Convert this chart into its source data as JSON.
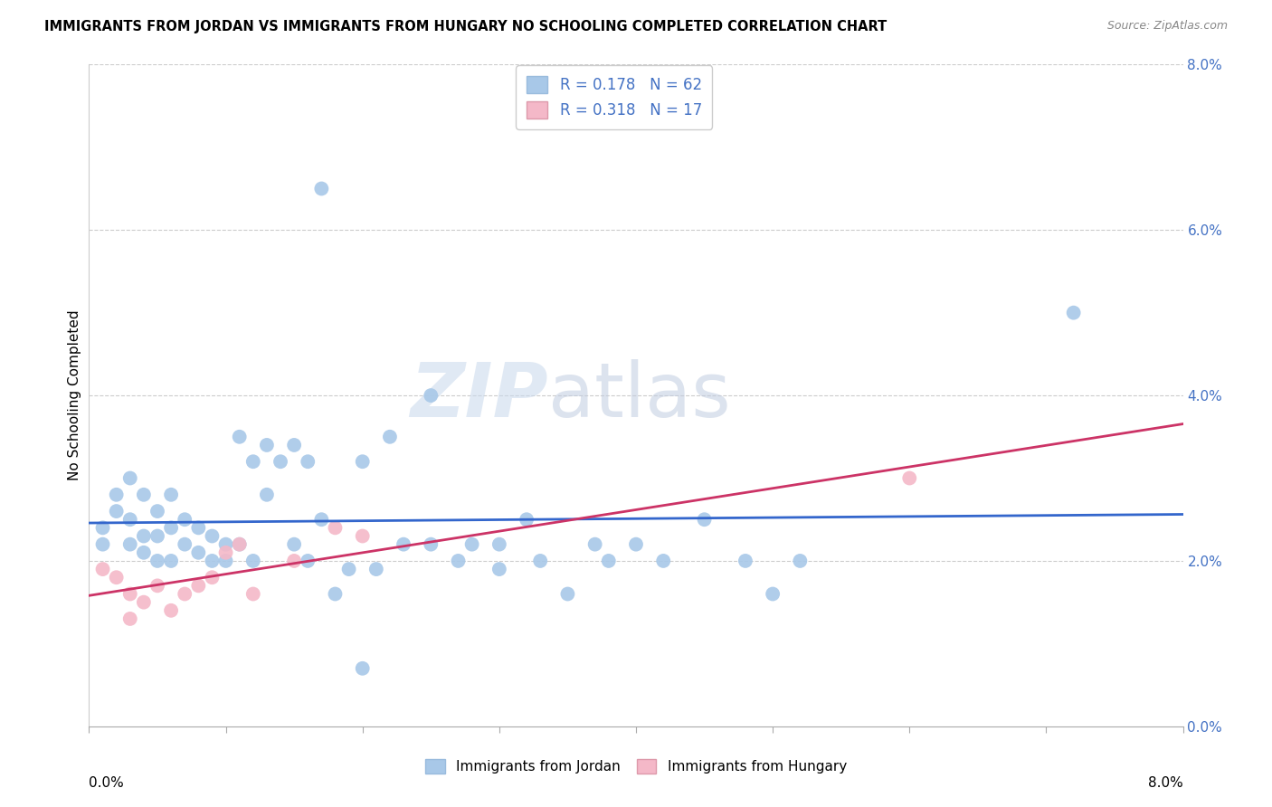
{
  "title": "IMMIGRANTS FROM JORDAN VS IMMIGRANTS FROM HUNGARY NO SCHOOLING COMPLETED CORRELATION CHART",
  "source": "Source: ZipAtlas.com",
  "ylabel": "No Schooling Completed",
  "legend_jordan": "Immigrants from Jordan",
  "legend_hungary": "Immigrants from Hungary",
  "r_jordan": "0.178",
  "n_jordan": "62",
  "r_hungary": "0.318",
  "n_hungary": "17",
  "jordan_color": "#a8c8e8",
  "hungary_color": "#f4b8c8",
  "jordan_line_color": "#3366cc",
  "hungary_line_color": "#cc3366",
  "watermark_zip": "ZIP",
  "watermark_atlas": "atlas",
  "jordan_x": [
    0.001,
    0.001,
    0.002,
    0.002,
    0.003,
    0.003,
    0.003,
    0.004,
    0.004,
    0.004,
    0.005,
    0.005,
    0.005,
    0.006,
    0.006,
    0.006,
    0.007,
    0.007,
    0.008,
    0.008,
    0.009,
    0.009,
    0.01,
    0.01,
    0.011,
    0.011,
    0.012,
    0.012,
    0.013,
    0.013,
    0.014,
    0.015,
    0.015,
    0.016,
    0.016,
    0.017,
    0.018,
    0.019,
    0.02,
    0.021,
    0.022,
    0.023,
    0.025,
    0.025,
    0.027,
    0.028,
    0.03,
    0.03,
    0.032,
    0.033,
    0.035,
    0.037,
    0.038,
    0.04,
    0.042,
    0.045,
    0.048,
    0.05,
    0.052,
    0.02,
    0.017,
    0.072
  ],
  "jordan_y": [
    0.024,
    0.022,
    0.026,
    0.028,
    0.022,
    0.025,
    0.03,
    0.021,
    0.023,
    0.028,
    0.02,
    0.023,
    0.026,
    0.02,
    0.024,
    0.028,
    0.022,
    0.025,
    0.021,
    0.024,
    0.02,
    0.023,
    0.02,
    0.022,
    0.035,
    0.022,
    0.032,
    0.02,
    0.034,
    0.028,
    0.032,
    0.034,
    0.022,
    0.032,
    0.02,
    0.025,
    0.016,
    0.019,
    0.032,
    0.019,
    0.035,
    0.022,
    0.04,
    0.022,
    0.02,
    0.022,
    0.022,
    0.019,
    0.025,
    0.02,
    0.016,
    0.022,
    0.02,
    0.022,
    0.02,
    0.025,
    0.02,
    0.016,
    0.02,
    0.007,
    0.065,
    0.05
  ],
  "hungary_x": [
    0.001,
    0.002,
    0.003,
    0.003,
    0.004,
    0.005,
    0.006,
    0.007,
    0.008,
    0.009,
    0.01,
    0.011,
    0.012,
    0.015,
    0.018,
    0.02,
    0.06
  ],
  "hungary_y": [
    0.019,
    0.018,
    0.016,
    0.013,
    0.015,
    0.017,
    0.014,
    0.016,
    0.017,
    0.018,
    0.021,
    0.022,
    0.016,
    0.02,
    0.024,
    0.023,
    0.03
  ],
  "xmin": 0.0,
  "xmax": 0.08,
  "ymin": 0.0,
  "ymax": 0.08,
  "yticks": [
    0.0,
    0.02,
    0.04,
    0.06,
    0.08
  ],
  "xticks": [
    0.0,
    0.01,
    0.02,
    0.03,
    0.04,
    0.05,
    0.06,
    0.07,
    0.08
  ]
}
